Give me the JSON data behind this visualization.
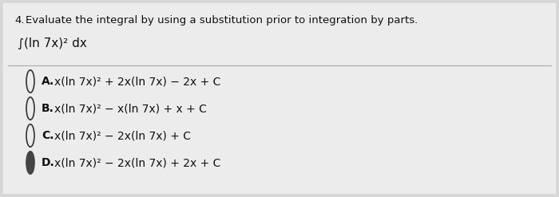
{
  "background_color": "#d8d8d8",
  "panel_color": "#e8e8e8",
  "question_number": "4.",
  "question_text": "Evaluate the integral by using a substitution prior to integration by parts.",
  "integral_line1": "∫(ln 7x)² dx",
  "choices": [
    {
      "label": "A.",
      "text": "x(ln 7x)² + 2x(ln 7x) − 2x + C",
      "selected": false
    },
    {
      "label": "B.",
      "text": "x(ln 7x)² − x(ln 7x) + x + C",
      "selected": false
    },
    {
      "label": "C.",
      "text": "x(ln 7x)² − 2x(ln 7x) + C",
      "selected": false
    },
    {
      "label": "D.",
      "text": "x(ln 7x)² − 2x(ln 7x) + 2x + C",
      "selected": true
    }
  ],
  "font_size_question": 9.5,
  "font_size_integral": 11,
  "font_size_choices": 10,
  "text_color": "#111111",
  "circle_color": "#333333",
  "filled_circle_color": "#444444",
  "line_color": "#aaaaaa"
}
